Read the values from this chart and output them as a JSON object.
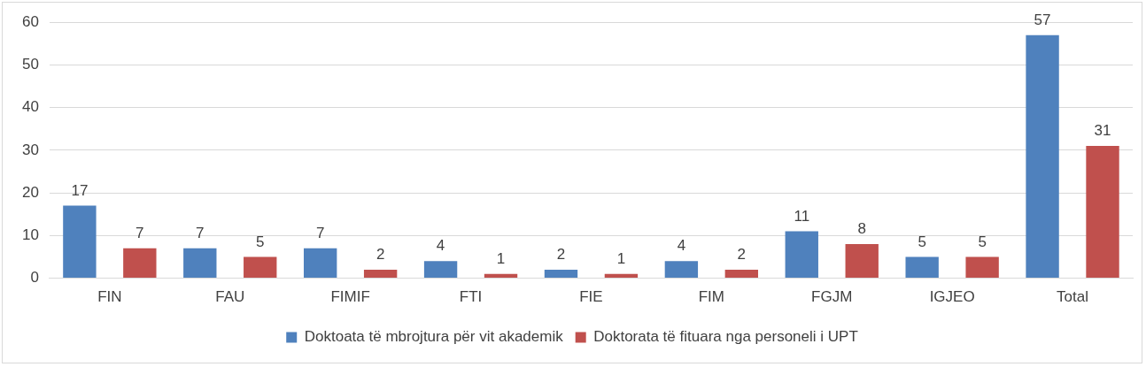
{
  "chart_data": {
    "type": "bar",
    "categories": [
      "FIN",
      "FAU",
      "FIMIF",
      "FTI",
      "FIE",
      "FIM",
      "FGJM",
      "IGJEO",
      "Total"
    ],
    "series": [
      {
        "name": "Doktoata të mbrojtura për vit akademik",
        "color": "#4f81bd",
        "values": [
          17,
          7,
          7,
          4,
          2,
          4,
          11,
          5,
          57
        ]
      },
      {
        "name": "Doktorata të fituara nga personeli i UPT",
        "color": "#c0504d",
        "values": [
          7,
          5,
          2,
          1,
          1,
          2,
          8,
          5,
          31
        ]
      }
    ],
    "ylim": [
      0,
      60
    ],
    "yticks": [
      0,
      10,
      20,
      30,
      40,
      50,
      60
    ],
    "grid": "y",
    "legend": "bottom",
    "data_labels": true
  }
}
